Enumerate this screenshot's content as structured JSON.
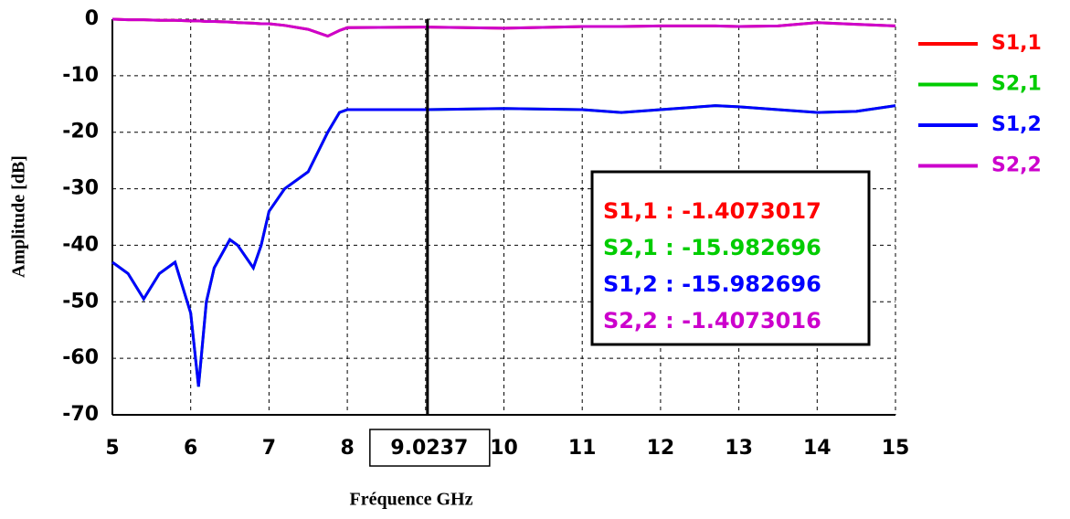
{
  "chart_data": {
    "type": "line",
    "xlabel": "Fréquence GHz",
    "ylabel": "Amplitude [dB]",
    "x": [
      5,
      5.2,
      5.4,
      5.6,
      5.8,
      6,
      6.1,
      6.2,
      6.3,
      6.5,
      6.6,
      6.8,
      6.9,
      7,
      7.2,
      7.5,
      7.75,
      7.9,
      8,
      9,
      10,
      11,
      11.5,
      12,
      12.7,
      13,
      13.5,
      14,
      14.5,
      15
    ],
    "series": [
      {
        "name": "S1,1",
        "color": "#ff0000",
        "values": [
          0,
          -0.1,
          -0.1,
          -0.2,
          -0.2,
          -0.3,
          -0.3,
          -0.4,
          -0.4,
          -0.5,
          -0.6,
          -0.7,
          -0.8,
          -0.8,
          -1.1,
          -1.8,
          -3,
          -2,
          -1.5,
          -1.4,
          -1.6,
          -1.3,
          -1.3,
          -1.2,
          -1.2,
          -1.3,
          -1.2,
          -0.6,
          -0.9,
          -1.2
        ]
      },
      {
        "name": "S2,1",
        "color": "#00cc00",
        "values": [
          -43,
          -45,
          -49.5,
          -45,
          -43,
          -52,
          -65,
          -50,
          -44,
          -39,
          -40,
          -44,
          -40,
          -34,
          -30,
          -27,
          -20,
          -16.5,
          -16,
          -16,
          -15.8,
          -16,
          -16.5,
          -16,
          -15.3,
          -15.5,
          -16,
          -16.5,
          -16.3,
          -15.3
        ]
      },
      {
        "name": "S1,2",
        "color": "#0000ff",
        "values": [
          -43,
          -45,
          -49.5,
          -45,
          -43,
          -52,
          -65,
          -50,
          -44,
          -39,
          -40,
          -44,
          -40,
          -34,
          -30,
          -27,
          -20,
          -16.5,
          -16,
          -16,
          -15.8,
          -16,
          -16.5,
          -16,
          -15.3,
          -15.5,
          -16,
          -16.5,
          -16.3,
          -15.3
        ]
      },
      {
        "name": "S2,2",
        "color": "#cc00cc",
        "values": [
          0,
          -0.1,
          -0.1,
          -0.2,
          -0.2,
          -0.3,
          -0.3,
          -0.4,
          -0.4,
          -0.5,
          -0.6,
          -0.7,
          -0.8,
          -0.8,
          -1.1,
          -1.8,
          -3,
          -2,
          -1.5,
          -1.4,
          -1.6,
          -1.3,
          -1.3,
          -1.2,
          -1.2,
          -1.3,
          -1.2,
          -0.6,
          -0.9,
          -1.2
        ]
      }
    ],
    "xlim": [
      5,
      15
    ],
    "xticks": [
      5,
      6,
      7,
      8,
      9,
      10,
      11,
      12,
      13,
      14,
      15
    ],
    "ylim": [
      -70,
      0
    ],
    "yticks": [
      0,
      -10,
      -20,
      -30,
      -40,
      -50,
      -60,
      -70
    ],
    "grid": true,
    "legend": "right",
    "marker": 9.0237,
    "readout": [
      "S1,1 : -1.4073017",
      "S2,1 : -15.982696",
      "S1,2 : -15.982696",
      "S2,2 : -1.4073016"
    ]
  }
}
